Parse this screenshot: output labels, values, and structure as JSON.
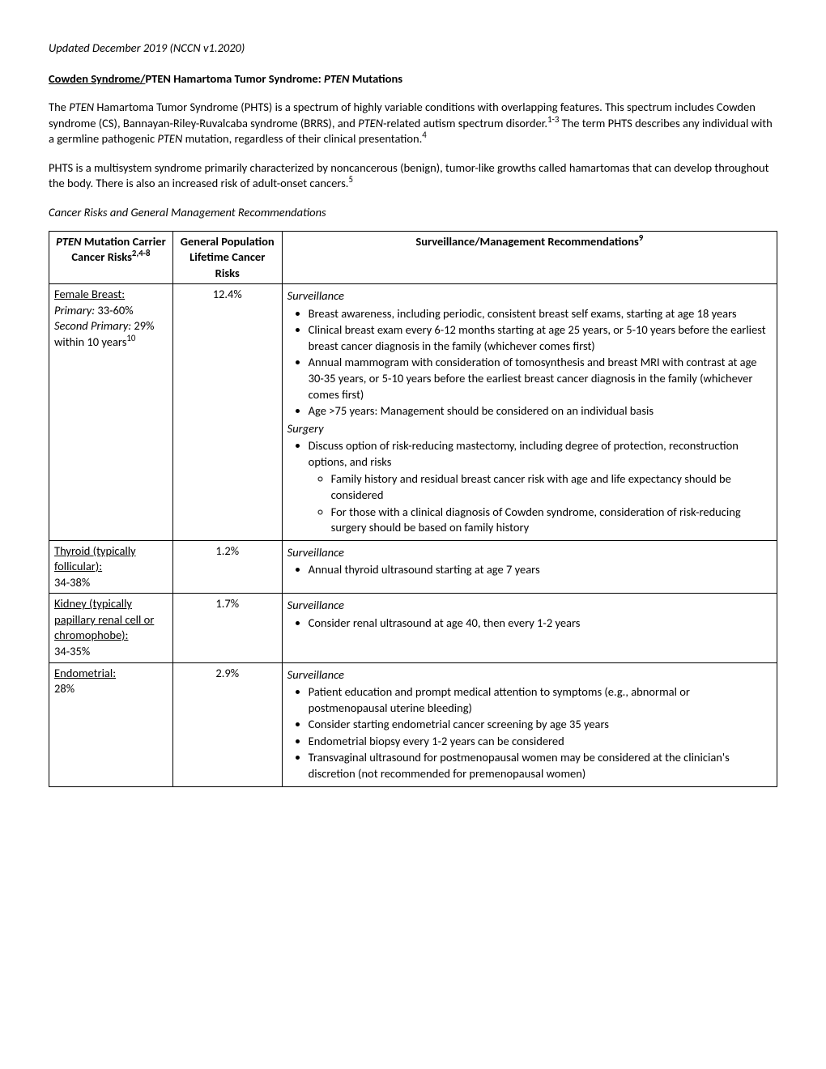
{
  "header_update": "Updated December 2019 (NCCN v1.2020)",
  "title": {
    "part1": "Cowden Syndrome/",
    "part2": "PTEN Hamartoma Tumor Syndrome: ",
    "part3": "PTEN",
    "part4": " Mutations"
  },
  "para1": {
    "s1": "The ",
    "s2": "PTEN",
    "s3": " Hamartoma Tumor Syndrome (PHTS) is a spectrum of highly variable conditions with overlapping features. This spectrum includes Cowden syndrome (CS), Bannayan-Riley-Ruvalcaba syndrome (BRRS), and ",
    "s4": "PTEN",
    "s5": "-related autism spectrum disorder.",
    "sup1": "1-3",
    "s6": " The term PHTS describes any individual with a germline pathogenic ",
    "s7": "PTEN",
    "s8": " mutation, regardless of their clinical presentation.",
    "sup2": "4"
  },
  "para2": {
    "s1": "PHTS is a multisystem syndrome primarily characterized by noncancerous (benign), tumor-like growths called hamartomas that can develop throughout the body. There is also an increased risk of adult-onset cancers.",
    "sup1": "5"
  },
  "subtitle": "Cancer Risks and General Management Recommendations",
  "table": {
    "header": {
      "c1a": "PTEN",
      "c1b": " Mutation Carrier Cancer Risks",
      "c1sup": "2,4-8",
      "c2": "General Population Lifetime Cancer Risks",
      "c3a": "Surveillance/Management Recommendations",
      "c3sup": "9"
    },
    "rows": {
      "breast": {
        "label": "Female Breast:",
        "line1a": "Primary:",
        "line1b": " 33-60%",
        "line2a": "Second Primary:",
        "line2b": " 29% within 10 years",
        "line2sup": "10",
        "pop": "12.4%",
        "surv_head": "Surveillance",
        "b1": "Breast awareness, including periodic, consistent breast self exams, starting at age 18 years",
        "b2": "Clinical breast exam every 6-12 months starting at age 25 years, or 5-10 years before the earliest breast cancer diagnosis in the family (whichever comes first)",
        "b3": "Annual mammogram with consideration of tomosynthesis and breast MRI with contrast at age 30-35 years, or 5-10 years before the earliest breast cancer diagnosis in the family (whichever comes first)",
        "b4": "Age >75 years: Management should be considered on an individual basis",
        "surg_head": "Surgery",
        "s1": "Discuss option of risk-reducing mastectomy, including degree of protection, reconstruction options, and risks",
        "s1a": "Family history and residual breast cancer risk with age and life expectancy should be considered",
        "s1b": "For those with a clinical diagnosis of Cowden syndrome, consideration of risk-reducing surgery should be based on family history"
      },
      "thyroid": {
        "label": "Thyroid (typically follicular):",
        "risk": "34-38%",
        "pop": "1.2%",
        "surv_head": "Surveillance",
        "b1": "Annual thyroid ultrasound starting at age 7 years"
      },
      "kidney": {
        "label": "Kidney (typically papillary renal cell or chromophobe):",
        "risk": "34-35%",
        "pop": "1.7%",
        "surv_head": "Surveillance",
        "b1": "Consider renal ultrasound at age 40, then every 1-2 years"
      },
      "endometrial": {
        "label": "Endometrial:",
        "risk": "28%",
        "pop": "2.9%",
        "surv_head": "Surveillance",
        "b1": "Patient education and prompt medical attention to symptoms (e.g., abnormal or postmenopausal uterine bleeding)",
        "b2": "Consider starting endometrial cancer screening by age 35 years",
        "b3": "Endometrial biopsy every 1-2 years can be considered",
        "b4": "Transvaginal ultrasound for postmenopausal women may be considered at the clinician's discretion (not recommended for premenopausal women)"
      }
    }
  }
}
